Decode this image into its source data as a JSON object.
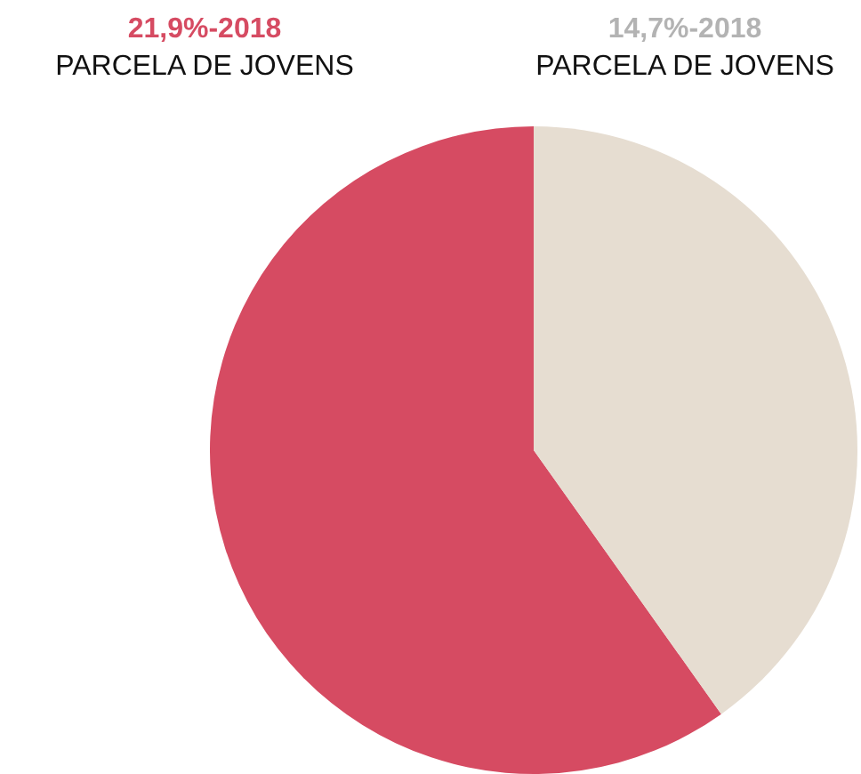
{
  "chart_data": {
    "type": "pie",
    "categories": [
      "PARCELA DE JOVENS",
      "PARCELA DE JOVENS"
    ],
    "values": [
      21.9,
      14.7
    ],
    "colors": [
      "#d64b62",
      "#e6ddd1"
    ],
    "value_labels": [
      "21,9%-2018",
      "14,7%-2018"
    ],
    "legend": false
  }
}
